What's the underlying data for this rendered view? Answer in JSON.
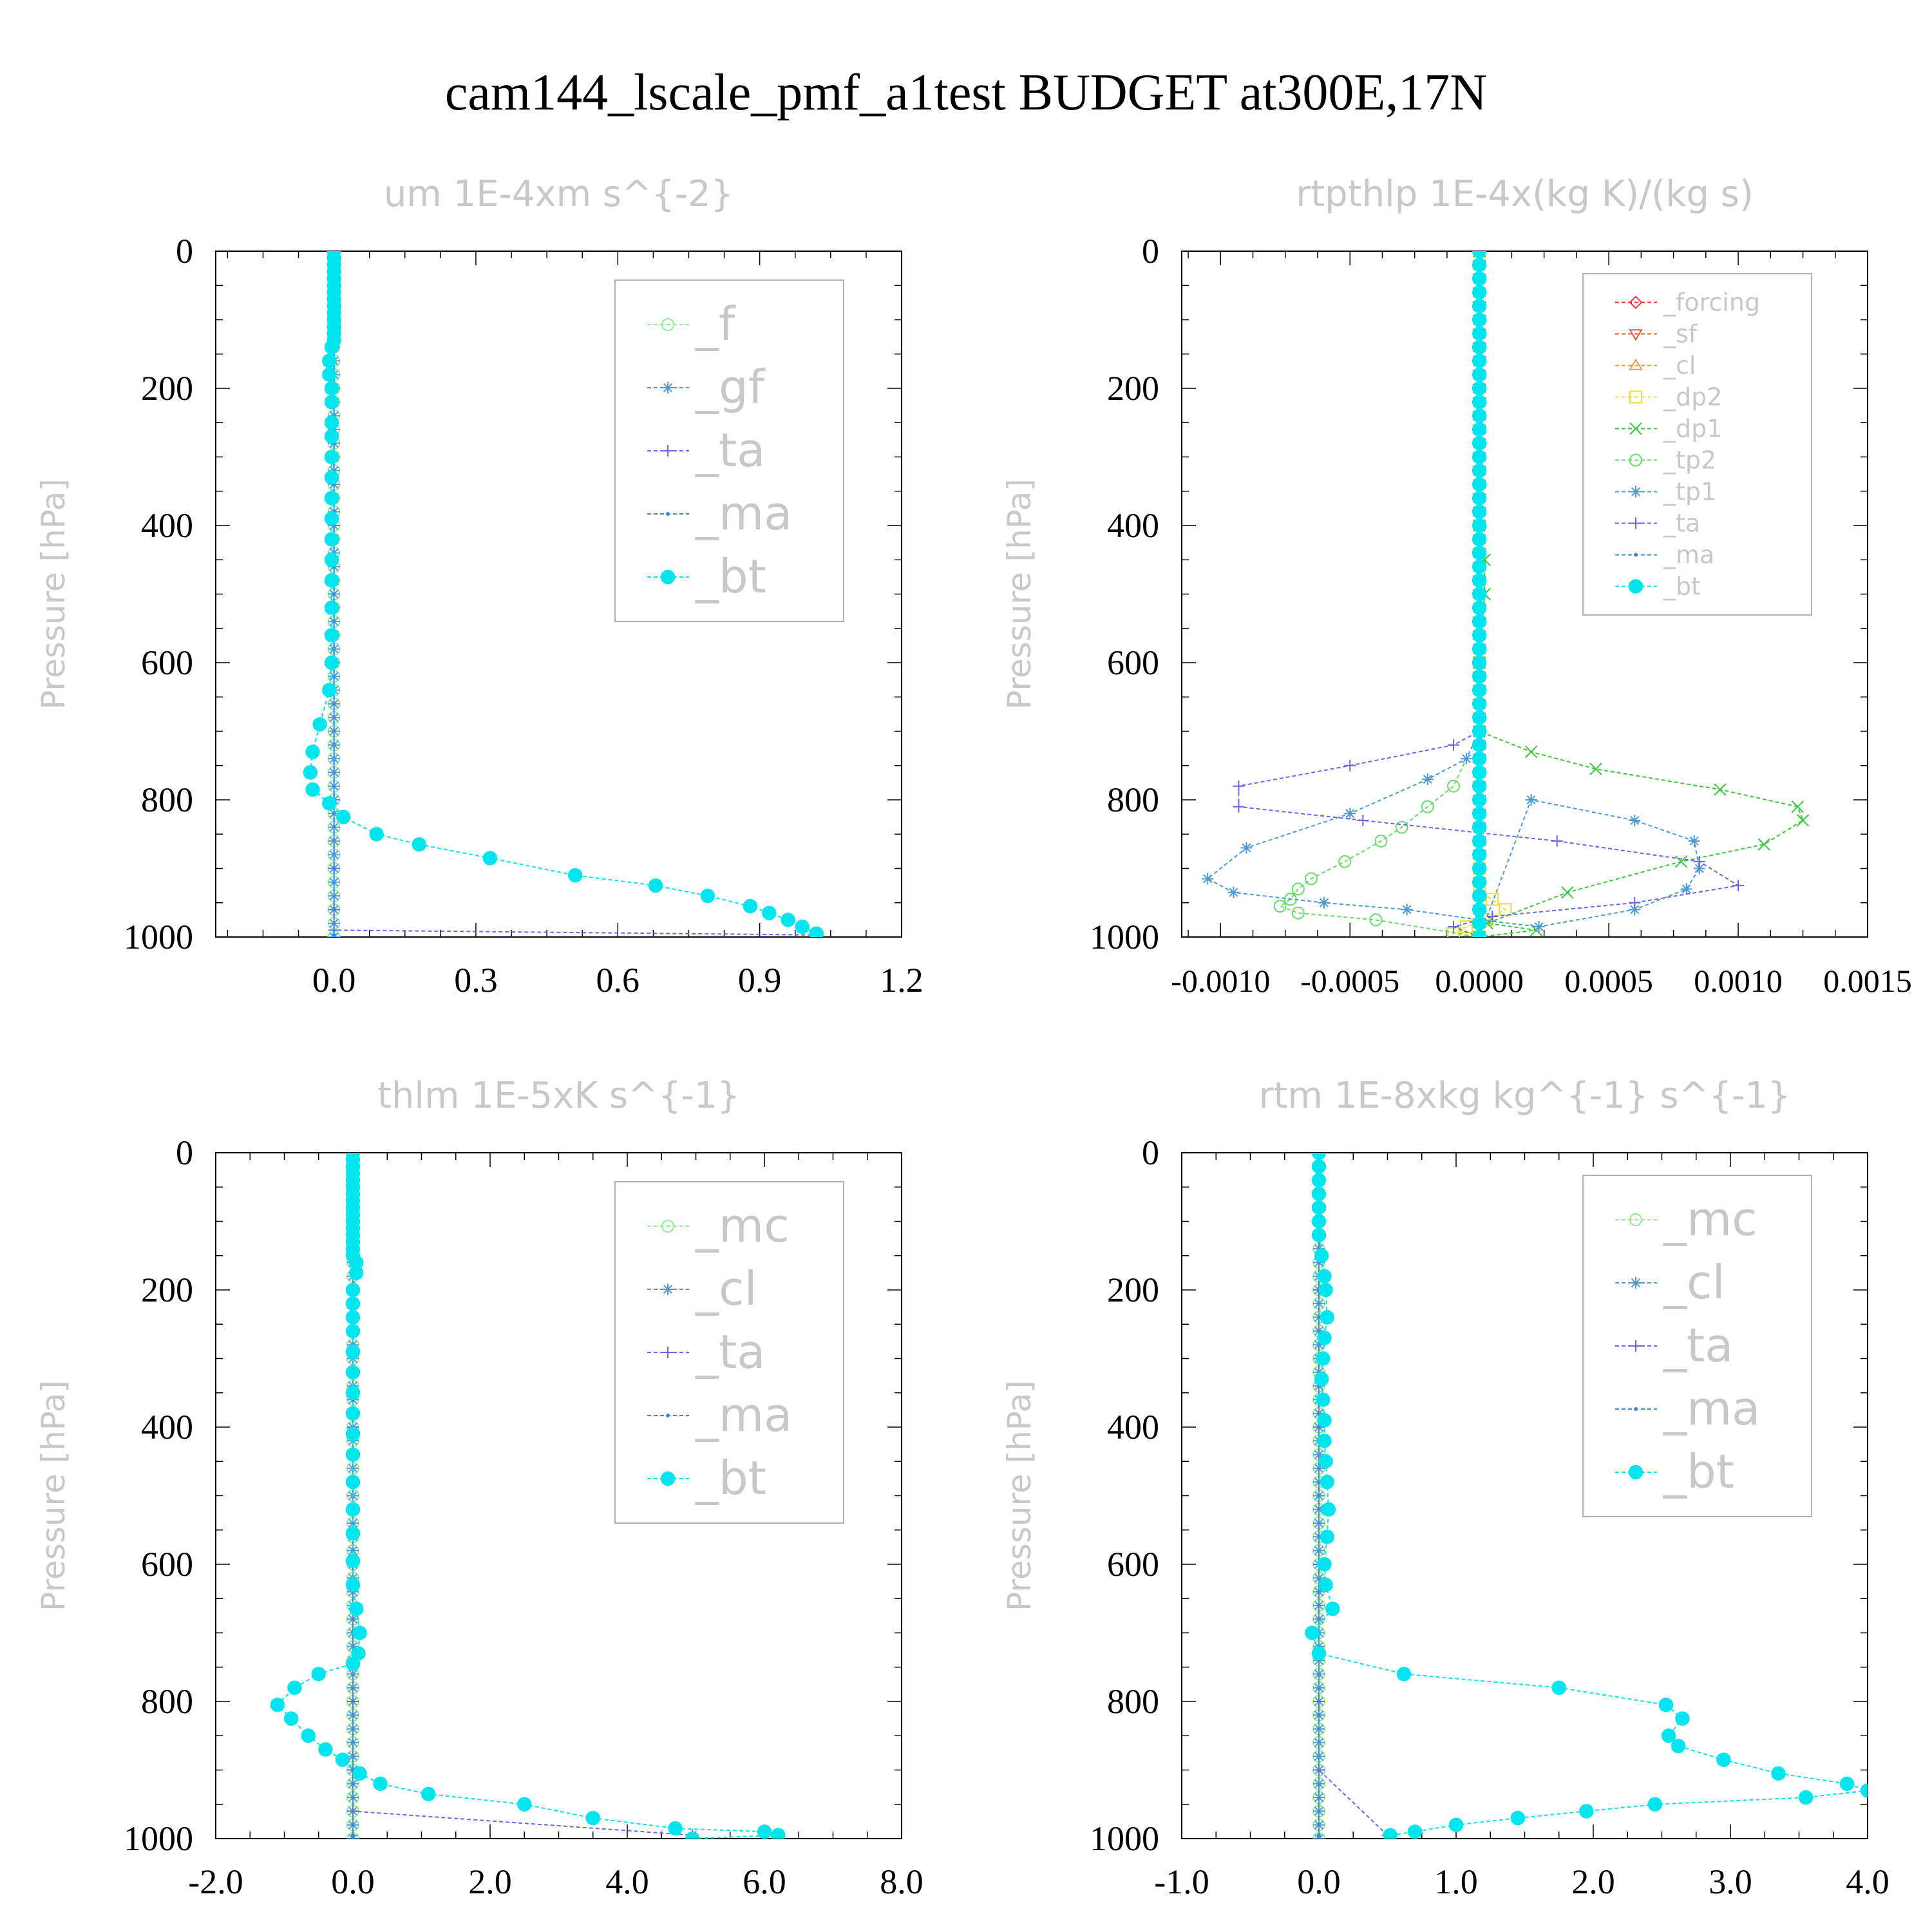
{
  "page_title": "cam144_lscale_pmf_a1test  BUDGET at300E,17N",
  "chart_data": [
    {
      "type": "line",
      "id": "um",
      "title": "um  1E-4xm s^{-2}",
      "ylabel": "Pressure [hPa]",
      "xlim": [
        -0.25,
        1.2
      ],
      "ylim": [
        1000,
        0
      ],
      "xticks": [
        "0.0",
        "0.3",
        "0.6",
        "0.9",
        "1.2"
      ],
      "xtick_values": [
        0.0,
        0.3,
        0.6,
        0.9,
        1.2
      ],
      "yticks": [
        "0",
        "200",
        "400",
        "600",
        "800",
        "1000"
      ],
      "ytick_values": [
        0,
        200,
        400,
        600,
        800,
        1000
      ],
      "legend_position": "top-right",
      "series": [
        {
          "name": "_f",
          "color": "#90ee90",
          "marker": "circle-open",
          "style": "vertical",
          "x": 0.0,
          "y_from": 0,
          "y_to": 1000
        },
        {
          "name": "_gf",
          "color": "#4a9ad8",
          "marker": "asterisk",
          "style": "vertical",
          "x": 0.0,
          "y_from": 0,
          "y_to": 1000
        },
        {
          "name": "_ta",
          "color": "#6666ee",
          "marker": "plus",
          "style": "points",
          "x": [
            0.0,
            0.0,
            0.0,
            0.0,
            0.0,
            0.0,
            0.0,
            0.0,
            1.02
          ],
          "y": [
            0,
            200,
            400,
            600,
            800,
            900,
            960,
            990,
            997
          ]
        },
        {
          "name": "_ma",
          "color": "#3a8ad0",
          "marker": "dot",
          "style": "line",
          "x": [
            0.0,
            0.0,
            0.0,
            0.0,
            0.0,
            0.0,
            0.0,
            0.0
          ],
          "y": [
            0,
            200,
            400,
            600,
            800,
            900,
            960,
            997
          ]
        },
        {
          "name": "_bt",
          "color": "#00e5ee",
          "marker": "filled-circle",
          "style": "line",
          "x": [
            0.0,
            0.0,
            0.0,
            0.0,
            0.0,
            0.0,
            0.0,
            0.0,
            0.0,
            0.0,
            0.0,
            0.0,
            0.0,
            0.0,
            -0.005,
            -0.01,
            -0.01,
            -0.005,
            -0.005,
            -0.005,
            -0.005,
            -0.005,
            -0.005,
            -0.005,
            -0.005,
            -0.005,
            -0.005,
            -0.005,
            -0.005,
            -0.005,
            -0.005,
            -0.01,
            -0.03,
            -0.045,
            -0.05,
            -0.045,
            -0.01,
            0.02,
            0.09,
            0.18,
            0.33,
            0.51,
            0.68,
            0.79,
            0.88,
            0.92,
            0.96,
            0.99,
            1.02
          ],
          "y": [
            0,
            10,
            20,
            30,
            40,
            50,
            60,
            70,
            80,
            90,
            100,
            110,
            120,
            130,
            140,
            160,
            180,
            200,
            220,
            250,
            270,
            300,
            330,
            360,
            390,
            420,
            450,
            480,
            520,
            560,
            600,
            640,
            690,
            730,
            760,
            785,
            805,
            825,
            850,
            865,
            885,
            910,
            925,
            940,
            955,
            965,
            975,
            985,
            995
          ]
        }
      ]
    },
    {
      "type": "line",
      "id": "rtpthlp",
      "title": "rtpthlp  1E-4x(kg K)/(kg s)",
      "ylabel": "Pressure [hPa]",
      "xlim": [
        -0.00115,
        0.0015
      ],
      "ylim": [
        1000,
        0
      ],
      "xticks": [
        "-0.0010",
        "-0.0005",
        "0.0000",
        "0.0005",
        "0.0010",
        "0.0015"
      ],
      "xtick_values": [
        -0.001,
        -0.0005,
        0.0,
        0.0005,
        0.001,
        0.0015
      ],
      "yticks": [
        "0",
        "200",
        "400",
        "600",
        "800",
        "1000"
      ],
      "ytick_values": [
        0,
        200,
        400,
        600,
        800,
        1000
      ],
      "legend_position": "top-right",
      "series": [
        {
          "name": "_forcing",
          "color": "#ee3333",
          "marker": "diamond-open",
          "style": "vertical",
          "x": 0.0,
          "y_from": 0,
          "y_to": 1000
        },
        {
          "name": "_sf",
          "color": "#ee5533",
          "marker": "triangle-down-open",
          "style": "vertical",
          "x": 0.0,
          "y_from": 0,
          "y_to": 1000
        },
        {
          "name": "_cl",
          "color": "#eea033",
          "marker": "triangle-up-open",
          "style": "vertical",
          "x": 0.0,
          "y_from": 0,
          "y_to": 1000
        },
        {
          "name": "_dp2",
          "color": "#eedd33",
          "marker": "square-open",
          "style": "line",
          "x": [
            0.0,
            0.0,
            0.0,
            0.0,
            5e-05,
            0.0001,
            3e-05,
            -5e-05,
            -0.0001,
            0.0
          ],
          "y": [
            0,
            600,
            900,
            935,
            945,
            960,
            975,
            985,
            995,
            1000
          ]
        },
        {
          "name": "_dp1",
          "color": "#33cc33",
          "marker": "cross",
          "style": "line",
          "x": [
            0.0,
            0.0,
            2e-05,
            2e-05,
            0.0,
            0.0,
            0.0002,
            0.00045,
            0.00093,
            0.00123,
            0.00125,
            0.0011,
            0.00078,
            0.00034,
            3e-05,
            0.00022,
            0.0
          ],
          "y": [
            0,
            400,
            450,
            500,
            600,
            700,
            730,
            755,
            785,
            810,
            830,
            865,
            890,
            935,
            980,
            990,
            1000
          ]
        },
        {
          "name": "_tp2",
          "color": "#66dd66",
          "marker": "circle-open",
          "style": "line",
          "x": [
            0.0,
            0.0,
            -0.0001,
            -0.0002,
            -0.0003,
            -0.00038,
            -0.00052,
            -0.00065,
            -0.0007,
            -0.00073,
            -0.00077,
            -0.0007,
            -0.0004,
            0.0
          ],
          "y": [
            0,
            700,
            780,
            810,
            840,
            860,
            890,
            915,
            930,
            945,
            955,
            965,
            975,
            1000
          ]
        },
        {
          "name": "_tp1",
          "color": "#4a9ad8",
          "marker": "asterisk",
          "style": "line",
          "x": [
            0.0,
            0.0,
            -5e-05,
            -0.0002,
            -0.0005,
            -0.0009,
            -0.00105,
            -0.00095,
            -0.0006,
            -0.00028,
            0.0,
            0.00023,
            0.0006,
            0.0008,
            0.00085,
            0.00083,
            0.0006,
            0.0002,
            0.0
          ],
          "y": [
            0,
            700,
            740,
            770,
            820,
            870,
            915,
            935,
            950,
            960,
            975,
            985,
            960,
            930,
            900,
            860,
            830,
            800,
            1000
          ]
        },
        {
          "name": "_ta",
          "color": "#6666ee",
          "marker": "plus",
          "style": "line",
          "x": [
            0.0,
            0.0,
            -0.0001,
            -0.0005,
            -0.00093,
            -0.00093,
            -0.00045,
            0.0003,
            0.00085,
            0.001,
            0.0006,
            5e-05,
            -0.0001,
            0.0
          ],
          "y": [
            0,
            700,
            720,
            750,
            780,
            810,
            830,
            860,
            890,
            925,
            950,
            970,
            985,
            1000
          ]
        },
        {
          "name": "_ma",
          "color": "#3a8ad0",
          "marker": "dot",
          "style": "vertical",
          "x": 0.0,
          "y_from": 0,
          "y_to": 1000
        },
        {
          "name": "_bt",
          "color": "#00e5ee",
          "marker": "filled-circle",
          "style": "vertical",
          "x": 0.0,
          "y_from": 0,
          "y_to": 1000
        }
      ]
    },
    {
      "type": "line",
      "id": "thlm",
      "title": "thlm  1E-5xK s^{-1}",
      "ylabel": "Pressure [hPa]",
      "xlim": [
        -2.0,
        8.0
      ],
      "ylim": [
        1000,
        0
      ],
      "xticks": [
        "-2.0",
        "0.0",
        "2.0",
        "4.0",
        "6.0",
        "8.0"
      ],
      "xtick_values": [
        -2.0,
        0.0,
        2.0,
        4.0,
        6.0,
        8.0
      ],
      "yticks": [
        "0",
        "200",
        "400",
        "600",
        "800",
        "1000"
      ],
      "ytick_values": [
        0,
        200,
        400,
        600,
        800,
        1000
      ],
      "legend_position": "top-right",
      "series": [
        {
          "name": "_mc",
          "color": "#90ee90",
          "marker": "circle-open",
          "style": "vertical",
          "x": 0.0,
          "y_from": 0,
          "y_to": 1000
        },
        {
          "name": "_cl",
          "color": "#4a9ad8",
          "marker": "asterisk",
          "style": "vertical",
          "x": 0.0,
          "y_from": 0,
          "y_to": 1000
        },
        {
          "name": "_ta",
          "color": "#6666ee",
          "marker": "plus",
          "style": "points",
          "x": [
            0.0,
            0.0,
            0.0,
            0.0,
            0.0,
            0.0,
            0.0,
            4.95
          ],
          "y": [
            0,
            200,
            400,
            600,
            800,
            900,
            960,
            995
          ]
        },
        {
          "name": "_ma",
          "color": "#3a8ad0",
          "marker": "dot",
          "style": "line",
          "x": [
            0.0,
            0.0,
            0.0,
            0.0,
            0.0,
            0.0,
            0.0
          ],
          "y": [
            0,
            200,
            400,
            600,
            800,
            900,
            995
          ]
        },
        {
          "name": "_bt",
          "color": "#00e5ee",
          "marker": "filled-circle",
          "style": "line",
          "x": [
            0.0,
            0.0,
            0.0,
            0.0,
            0.0,
            0.0,
            0.0,
            0.0,
            0.0,
            0.0,
            0.0,
            0.0,
            0.0,
            0.0,
            0.0,
            0.0,
            0.05,
            0.05,
            0.0,
            0.0,
            0.0,
            0.0,
            0.0,
            0.0,
            0.0,
            0.0,
            0.0,
            0.0,
            0.0,
            0.0,
            0.0,
            0.0,
            0.0,
            0.05,
            0.1,
            0.08,
            0.0,
            -0.5,
            -0.85,
            -1.1,
            -0.9,
            -0.65,
            -0.4,
            -0.15,
            0.1,
            0.4,
            1.1,
            2.5,
            3.5,
            4.7,
            6.0,
            6.2,
            4.95
          ],
          "y": [
            0,
            10,
            20,
            30,
            40,
            50,
            60,
            70,
            80,
            90,
            100,
            110,
            120,
            130,
            140,
            150,
            160,
            175,
            200,
            220,
            240,
            260,
            290,
            320,
            350,
            380,
            410,
            440,
            480,
            520,
            555,
            595,
            630,
            665,
            700,
            730,
            745,
            760,
            780,
            805,
            825,
            850,
            870,
            885,
            905,
            920,
            935,
            950,
            970,
            985,
            990,
            995,
            1000
          ]
        }
      ]
    },
    {
      "type": "line",
      "id": "rtm",
      "title": "rtm  1E-8xkg kg^{-1} s^{-1}",
      "ylabel": "Pressure [hPa]",
      "xlim": [
        -1.0,
        4.0
      ],
      "ylim": [
        1000,
        0
      ],
      "xticks": [
        "-1.0",
        "0.0",
        "1.0",
        "2.0",
        "3.0",
        "4.0"
      ],
      "xtick_values": [
        -1.0,
        0.0,
        1.0,
        2.0,
        3.0,
        4.0
      ],
      "yticks": [
        "0",
        "200",
        "400",
        "600",
        "800",
        "1000"
      ],
      "ytick_values": [
        0,
        200,
        400,
        600,
        800,
        1000
      ],
      "legend_position": "top-right",
      "series": [
        {
          "name": "_mc",
          "color": "#90ee90",
          "marker": "circle-open",
          "style": "vertical",
          "x": 0.0,
          "y_from": 0,
          "y_to": 1000
        },
        {
          "name": "_cl",
          "color": "#4a9ad8",
          "marker": "asterisk",
          "style": "vertical",
          "x": 0.0,
          "y_from": 0,
          "y_to": 1000
        },
        {
          "name": "_ta",
          "color": "#6666ee",
          "marker": "plus",
          "style": "points",
          "x": [
            0.0,
            0.0,
            0.0,
            0.0,
            0.0,
            0.0,
            0.5
          ],
          "y": [
            0,
            200,
            400,
            600,
            800,
            900,
            995
          ]
        },
        {
          "name": "_ma",
          "color": "#3a8ad0",
          "marker": "dot",
          "style": "line",
          "x": [
            0.0,
            0.0,
            0.0,
            0.0,
            0.0,
            0.0
          ],
          "y": [
            0,
            200,
            400,
            600,
            800,
            995
          ]
        },
        {
          "name": "_bt",
          "color": "#00e5ee",
          "marker": "filled-circle",
          "style": "line",
          "x": [
            0.0,
            0.0,
            0.0,
            0.0,
            0.0,
            0.0,
            0.0,
            0.02,
            0.04,
            0.05,
            0.06,
            0.04,
            0.03,
            0.02,
            0.03,
            0.04,
            0.04,
            0.05,
            0.06,
            0.07,
            0.06,
            0.04,
            0.05,
            0.1,
            -0.05,
            0.0,
            0.62,
            1.75,
            2.53,
            2.65,
            2.55,
            2.62,
            2.95,
            3.35,
            3.85,
            4.0,
            3.55,
            2.45,
            1.95,
            1.45,
            1.0,
            0.7,
            0.52
          ],
          "y": [
            0,
            20,
            40,
            60,
            80,
            100,
            120,
            150,
            180,
            200,
            240,
            270,
            300,
            330,
            360,
            390,
            420,
            450,
            480,
            520,
            560,
            600,
            630,
            665,
            700,
            730,
            760,
            780,
            805,
            825,
            850,
            865,
            885,
            905,
            920,
            930,
            940,
            950,
            960,
            970,
            980,
            990,
            995
          ]
        }
      ]
    }
  ]
}
